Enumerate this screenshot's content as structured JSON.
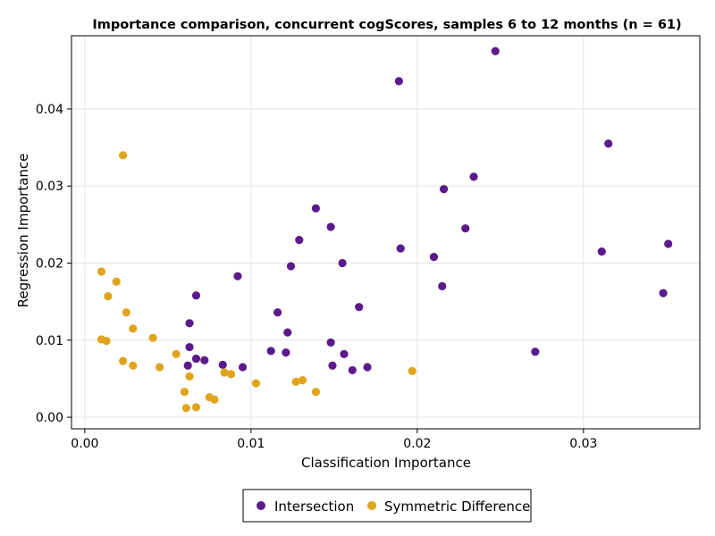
{
  "chart_data": {
    "type": "scatter",
    "title": "Importance comparison, concurrent cogScores, samples 6 to 12 months (n = 61)",
    "xlabel": "Classification Importance",
    "ylabel": "Regression Importance",
    "xlim": [
      -0.0008,
      0.037
    ],
    "ylim": [
      -0.0015,
      0.0495
    ],
    "xticks": [
      0.0,
      0.01,
      0.02,
      0.03
    ],
    "xtick_labels": [
      "0.00",
      "0.01",
      "0.02",
      "0.03"
    ],
    "yticks": [
      0.0,
      0.01,
      0.02,
      0.03,
      0.04
    ],
    "ytick_labels": [
      "0.00",
      "0.01",
      "0.02",
      "0.03",
      "0.04"
    ],
    "grid": true,
    "legend_position": "bottom-center",
    "series": [
      {
        "name": "Intersection",
        "color": "#5b1a8c",
        "points": [
          [
            0.0247,
            0.0475
          ],
          [
            0.0189,
            0.0436
          ],
          [
            0.0315,
            0.0355
          ],
          [
            0.0234,
            0.0312
          ],
          [
            0.0216,
            0.0296
          ],
          [
            0.0139,
            0.0271
          ],
          [
            0.0148,
            0.0247
          ],
          [
            0.0229,
            0.0245
          ],
          [
            0.0129,
            0.023
          ],
          [
            0.0351,
            0.0225
          ],
          [
            0.019,
            0.0219
          ],
          [
            0.0311,
            0.0215
          ],
          [
            0.021,
            0.0208
          ],
          [
            0.0155,
            0.02
          ],
          [
            0.0124,
            0.0196
          ],
          [
            0.0092,
            0.0183
          ],
          [
            0.0215,
            0.017
          ],
          [
            0.0348,
            0.0161
          ],
          [
            0.0067,
            0.0158
          ],
          [
            0.0165,
            0.0143
          ],
          [
            0.0116,
            0.0136
          ],
          [
            0.0063,
            0.0122
          ],
          [
            0.0122,
            0.011
          ],
          [
            0.0148,
            0.0097
          ],
          [
            0.0063,
            0.0091
          ],
          [
            0.0112,
            0.0086
          ],
          [
            0.0271,
            0.0085
          ],
          [
            0.0121,
            0.0084
          ],
          [
            0.0156,
            0.0082
          ],
          [
            0.0067,
            0.0076
          ],
          [
            0.0072,
            0.0074
          ],
          [
            0.0083,
            0.0068
          ],
          [
            0.0062,
            0.0067
          ],
          [
            0.0149,
            0.0067
          ],
          [
            0.017,
            0.0065
          ],
          [
            0.0095,
            0.0065
          ],
          [
            0.0161,
            0.0061
          ]
        ]
      },
      {
        "name": "Symmetric Difference",
        "color": "#e0a51d",
        "points": [
          [
            0.0023,
            0.034
          ],
          [
            0.001,
            0.0189
          ],
          [
            0.0019,
            0.0176
          ],
          [
            0.0014,
            0.0157
          ],
          [
            0.0025,
            0.0136
          ],
          [
            0.0029,
            0.0115
          ],
          [
            0.0041,
            0.0103
          ],
          [
            0.001,
            0.0101
          ],
          [
            0.0013,
            0.0099
          ],
          [
            0.0055,
            0.0082
          ],
          [
            0.0023,
            0.0073
          ],
          [
            0.0029,
            0.0067
          ],
          [
            0.0045,
            0.0065
          ],
          [
            0.0197,
            0.006
          ],
          [
            0.0084,
            0.0058
          ],
          [
            0.0088,
            0.0056
          ],
          [
            0.0063,
            0.0053
          ],
          [
            0.0131,
            0.0048
          ],
          [
            0.0127,
            0.0046
          ],
          [
            0.0103,
            0.0044
          ],
          [
            0.006,
            0.0033
          ],
          [
            0.0139,
            0.0033
          ],
          [
            0.0075,
            0.0026
          ],
          [
            0.0078,
            0.0023
          ],
          [
            0.0061,
            0.0012
          ],
          [
            0.0067,
            0.0013
          ]
        ]
      }
    ]
  }
}
